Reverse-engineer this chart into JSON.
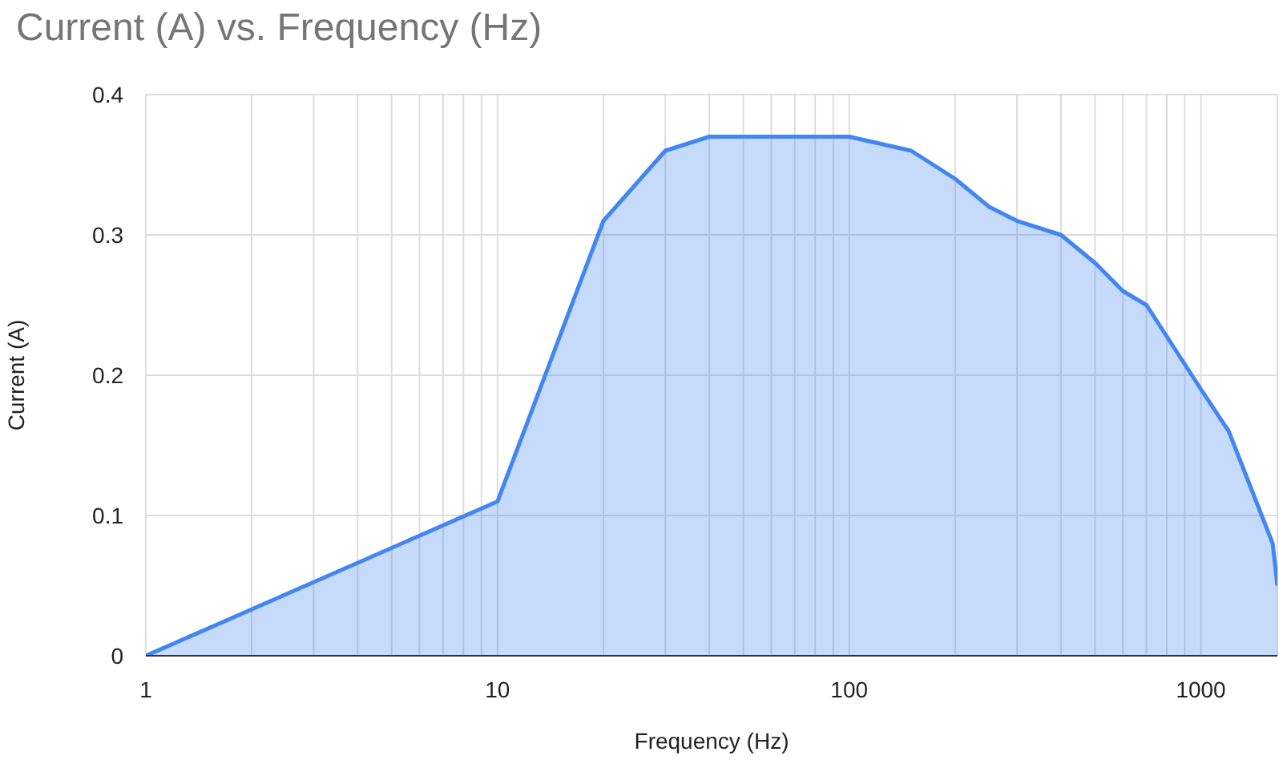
{
  "chart_data": {
    "type": "area",
    "title": "Current (A) vs. Frequency (Hz)",
    "xlabel": "Frequency (Hz)",
    "ylabel": "Current (A)",
    "x": [
      1,
      10,
      20,
      30,
      40,
      100,
      150,
      200,
      250,
      300,
      400,
      500,
      600,
      700,
      1000,
      1200,
      1600,
      1650
    ],
    "series": [
      {
        "color": "#4285f4",
        "values": [
          0,
          0.11,
          0.31,
          0.36,
          0.37,
          0.37,
          0.36,
          0.34,
          0.32,
          0.31,
          0.3,
          0.28,
          0.26,
          0.25,
          0.19,
          0.16,
          0.08,
          0.05
        ]
      }
    ],
    "log": "x",
    "xlim": [
      1,
      1650
    ],
    "ylim": [
      0,
      0.4
    ],
    "xticks": [
      1,
      {
        "value": 2,
        "label": null
      },
      {
        "value": 3,
        "label": null
      },
      {
        "value": 4,
        "label": null
      },
      {
        "value": 5,
        "label": null
      },
      {
        "value": 6,
        "label": null
      },
      {
        "value": 7,
        "label": null
      },
      {
        "value": 8,
        "label": null
      },
      {
        "value": 9,
        "label": null
      },
      10,
      {
        "value": 20,
        "label": null
      },
      {
        "value": 30,
        "label": null
      },
      {
        "value": 40,
        "label": null
      },
      {
        "value": 50,
        "label": null
      },
      {
        "value": 60,
        "label": null
      },
      {
        "value": 70,
        "label": null
      },
      {
        "value": 80,
        "label": null
      },
      {
        "value": 90,
        "label": null
      },
      100,
      {
        "value": 200,
        "label": null
      },
      {
        "value": 300,
        "label": null
      },
      {
        "value": 400,
        "label": null
      },
      {
        "value": 500,
        "label": null
      },
      {
        "value": 600,
        "label": null
      },
      {
        "value": 700,
        "label": null
      },
      {
        "value": 800,
        "label": null
      },
      {
        "value": 900,
        "label": null
      },
      1000
    ],
    "yticks": [
      0,
      0.1,
      0.2,
      0.3,
      0.4
    ],
    "grid": true,
    "legend": false,
    "marker": "none",
    "line_style": "solid"
  }
}
